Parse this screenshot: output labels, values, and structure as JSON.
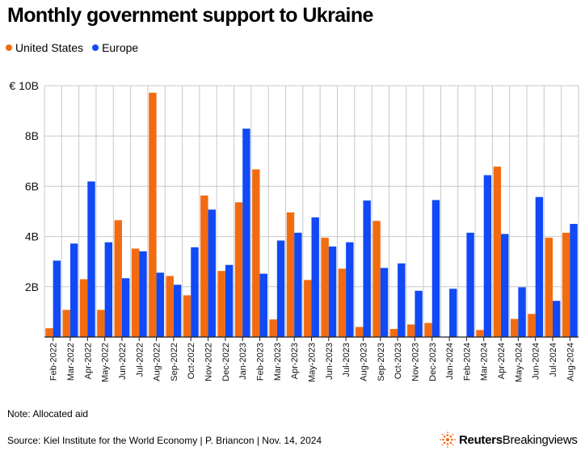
{
  "chart_data": {
    "type": "bar",
    "title": "Monthly government support to Ukraine",
    "xlabel": "",
    "ylabel": "",
    "ylim": [
      0,
      10
    ],
    "y_ticks": [
      {
        "value": 2,
        "label": "2B"
      },
      {
        "value": 4,
        "label": "4B"
      },
      {
        "value": 6,
        "label": "6B"
      },
      {
        "value": 8,
        "label": "8B"
      },
      {
        "value": 10,
        "label": "€ 10B"
      }
    ],
    "grid": true,
    "legend_position": "top-left",
    "categories": [
      "Feb-2022",
      "Mar-2022",
      "Apr-2022",
      "May-2022",
      "Jun-2022",
      "Jul-2022",
      "Aug-2022",
      "Sep-2022",
      "Oct-2022",
      "Nov-2022",
      "Dec-2022",
      "Jan-2023",
      "Feb-2023",
      "Mar-2023",
      "Apr-2023",
      "May-2023",
      "Jun-2023",
      "Jul-2023",
      "Aug-2023",
      "Sep-2023",
      "Oct-2023",
      "Nov-2023",
      "Dec-2023",
      "Jan-2024",
      "Feb-2024",
      "Mar-2024",
      "Apr-2024",
      "May-2024",
      "Jun-2024",
      "Jul-2024",
      "Aug-2024"
    ],
    "series": [
      {
        "name": "United States",
        "color": "#f26b10",
        "values": [
          0.35,
          1.08,
          2.3,
          1.08,
          4.65,
          3.52,
          9.72,
          2.43,
          1.66,
          5.63,
          2.63,
          5.36,
          6.67,
          0.7,
          4.96,
          2.27,
          3.95,
          2.72,
          0.4,
          4.62,
          0.32,
          0.5,
          0.56,
          0,
          0,
          0.28,
          6.78,
          0.72,
          0.92,
          3.95,
          4.15
        ]
      },
      {
        "name": "Europe",
        "color": "#1049f5",
        "values": [
          3.04,
          3.72,
          6.19,
          3.77,
          2.34,
          3.41,
          2.56,
          2.08,
          3.57,
          5.07,
          2.87,
          8.29,
          2.52,
          3.84,
          4.15,
          4.76,
          3.6,
          3.77,
          5.43,
          2.75,
          2.93,
          1.84,
          5.45,
          1.92,
          4.15,
          6.44,
          4.1,
          1.98,
          5.57,
          1.44,
          4.5
        ]
      }
    ]
  },
  "note": "Note: Allocated aid",
  "source": "Source: Kiel Institute for the World Economy | P. Briancon | Nov. 14, 2024",
  "brand": {
    "part1": "Reuters",
    "part2": "Breakingviews"
  }
}
